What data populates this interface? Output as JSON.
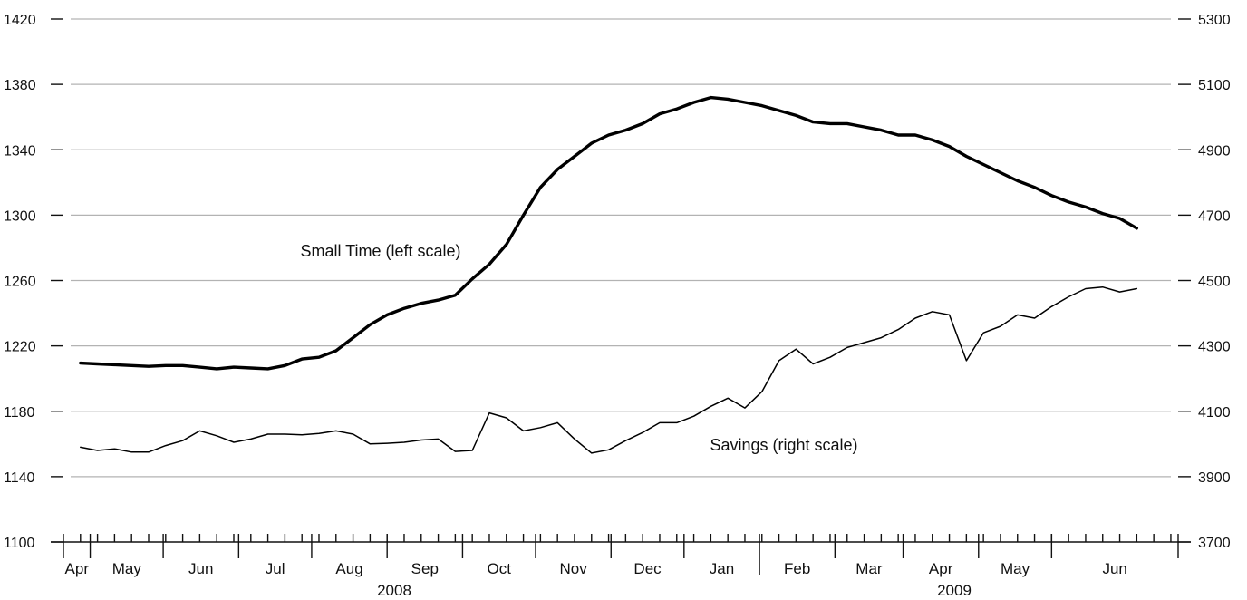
{
  "chart_data": {
    "type": "line",
    "x_start": "2008-03-28",
    "x_step_days": 7,
    "left_axis": {
      "min": 1100,
      "max": 1420,
      "ticks": [
        "1100",
        "1140",
        "1180",
        "1220",
        "1260",
        "1300",
        "1340",
        "1380",
        "1420"
      ]
    },
    "right_axis": {
      "min": 3700,
      "max": 5300,
      "ticks": [
        "3700",
        "3900",
        "4100",
        "4300",
        "4500",
        "4700",
        "4900",
        "5100",
        "5300"
      ]
    },
    "grid": true,
    "months": [
      "Apr",
      "May",
      "Jun",
      "Jul",
      "Aug",
      "Sep",
      "Oct",
      "Nov",
      "Dec",
      "Jan",
      "Feb",
      "Mar",
      "Apr",
      "May",
      "Jun"
    ],
    "years": [
      "2008",
      "2009"
    ],
    "annotations": [
      "Small Time (left scale)",
      "Savings (right scale)"
    ],
    "series": [
      {
        "name": "Small Time",
        "axis": "left",
        "values": [
          1209.5,
          1209,
          1208.5,
          1208,
          1207.5,
          1208,
          1208,
          1207,
          1206,
          1207,
          1206.5,
          1206,
          1208,
          1212,
          1213,
          1217,
          1225,
          1233,
          1239,
          1243,
          1246,
          1248,
          1251,
          1261,
          1270,
          1282,
          1300,
          1317,
          1328,
          1336,
          1344,
          1349,
          1352,
          1356,
          1362,
          1365,
          1369,
          1372,
          1371,
          1369,
          1367,
          1364,
          1361,
          1357,
          1356,
          1356,
          1354,
          1352,
          1349,
          1349,
          1346,
          1342,
          1336,
          1331,
          1326,
          1321,
          1317,
          1312,
          1308,
          1305,
          1301,
          1298,
          1292
        ]
      },
      {
        "name": "Savings",
        "axis": "right",
        "values": [
          3990,
          3980,
          3985,
          3975,
          3975,
          3995,
          4010,
          4040,
          4025,
          4005,
          4015,
          4030,
          4030,
          4028,
          4032,
          4040,
          4030,
          4000,
          4002,
          4005,
          4012,
          4015,
          3977,
          3980,
          4095,
          4080,
          4040,
          4050,
          4065,
          4015,
          3972,
          3982,
          4010,
          4035,
          4065,
          4065,
          4085,
          4115,
          4140,
          4110,
          4160,
          4255,
          4290,
          4245,
          4265,
          4295,
          4310,
          4325,
          4350,
          4385,
          4405,
          4395,
          4255,
          4340,
          4360,
          4395,
          4385,
          4420,
          4450,
          4475,
          4480,
          4465,
          4475
        ]
      }
    ]
  }
}
